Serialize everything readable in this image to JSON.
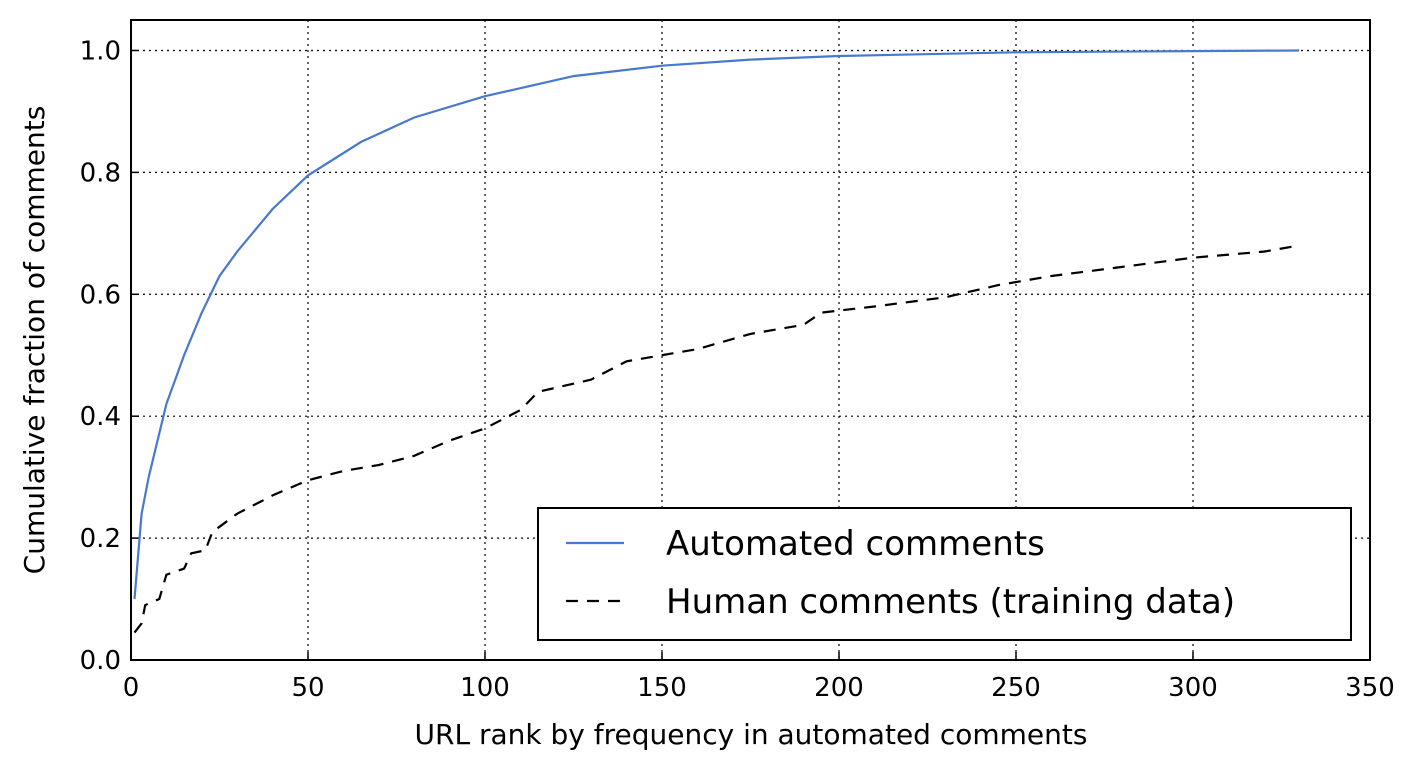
{
  "chart_data": {
    "type": "line",
    "x_label": "URL rank by frequency in automated comments",
    "y_label": "Cumulative fraction of comments",
    "xlim": [
      0,
      350
    ],
    "xticks": [
      0,
      50,
      100,
      150,
      200,
      250,
      300,
      350
    ],
    "ylim": [
      0,
      1.05
    ],
    "yticks": [
      {
        "value": 0,
        "label": "0.0"
      },
      {
        "value": 0.2,
        "label": "0.2"
      },
      {
        "value": 0.4,
        "label": "0.4"
      },
      {
        "value": 0.6,
        "label": "0.6"
      },
      {
        "value": 0.8,
        "label": "0.8"
      },
      {
        "value": 1,
        "label": "1.0"
      }
    ],
    "grid": true,
    "legend": "lower right",
    "series": [
      {
        "name": "Automated comments",
        "color": "#4878cf",
        "dashed": false,
        "x": [
          1,
          3,
          5,
          10,
          15,
          20,
          25,
          30,
          40,
          50,
          65,
          80,
          100,
          125,
          150,
          175,
          200,
          250,
          300,
          330
        ],
        "values": [
          0.1,
          0.24,
          0.3,
          0.42,
          0.5,
          0.57,
          0.63,
          0.67,
          0.74,
          0.795,
          0.85,
          0.89,
          0.925,
          0.958,
          0.975,
          0.985,
          0.991,
          0.997,
          0.999,
          1.0
        ]
      },
      {
        "name": "Human comments (training data)",
        "color": "#000000",
        "dashed": true,
        "x": [
          1,
          3,
          4,
          8,
          10,
          15,
          17,
          21,
          23,
          30,
          40,
          50,
          60,
          70,
          80,
          90,
          100,
          110,
          115,
          130,
          140,
          160,
          175,
          190,
          195,
          210,
          230,
          245,
          260,
          280,
          300,
          320,
          330
        ],
        "values": [
          0.045,
          0.06,
          0.09,
          0.1,
          0.14,
          0.15,
          0.175,
          0.18,
          0.21,
          0.24,
          0.27,
          0.295,
          0.31,
          0.32,
          0.335,
          0.36,
          0.38,
          0.41,
          0.44,
          0.46,
          0.49,
          0.51,
          0.535,
          0.55,
          0.57,
          0.58,
          0.595,
          0.615,
          0.63,
          0.645,
          0.66,
          0.67,
          0.68
        ]
      }
    ]
  }
}
